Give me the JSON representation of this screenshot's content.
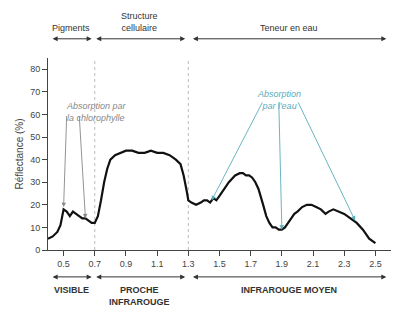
{
  "chart_data": {
    "type": "line",
    "ylabel": "Réflectance (%)",
    "x": [
      0.4,
      0.43,
      0.46,
      0.48,
      0.5,
      0.52,
      0.54,
      0.56,
      0.58,
      0.6,
      0.62,
      0.64,
      0.66,
      0.68,
      0.7,
      0.72,
      0.74,
      0.76,
      0.78,
      0.8,
      0.83,
      0.86,
      0.9,
      0.94,
      0.98,
      1.02,
      1.06,
      1.1,
      1.14,
      1.18,
      1.22,
      1.25,
      1.27,
      1.29,
      1.3,
      1.32,
      1.35,
      1.38,
      1.4,
      1.42,
      1.44,
      1.46,
      1.48,
      1.5,
      1.53,
      1.56,
      1.6,
      1.63,
      1.65,
      1.67,
      1.69,
      1.71,
      1.73,
      1.75,
      1.78,
      1.8,
      1.82,
      1.84,
      1.86,
      1.88,
      1.9,
      1.92,
      1.94,
      1.96,
      1.98,
      2.0,
      2.03,
      2.06,
      2.09,
      2.12,
      2.15,
      2.18,
      2.2,
      2.23,
      2.26,
      2.3,
      2.34,
      2.38,
      2.42,
      2.46,
      2.5
    ],
    "values": [
      5,
      6,
      8,
      11,
      18,
      17,
      15,
      17,
      16,
      15,
      14,
      14,
      13,
      12,
      12,
      15,
      22,
      30,
      36,
      40,
      42,
      43,
      44,
      44,
      43,
      43,
      44,
      43,
      43,
      42,
      40,
      38,
      33,
      26,
      22,
      21,
      20,
      21,
      22,
      22,
      21,
      23,
      22,
      24,
      27,
      30,
      33,
      34,
      34,
      33,
      33,
      32,
      30,
      27,
      20,
      15,
      12,
      10,
      10,
      9,
      9,
      10,
      12,
      14,
      16,
      17,
      19,
      20,
      20,
      19,
      18,
      16,
      17,
      18,
      17,
      16,
      14,
      12,
      9,
      5,
      3
    ],
    "color": "#111111",
    "xlim": [
      0.4,
      2.6
    ],
    "ylim": [
      0,
      85
    ],
    "xticks": [
      0.5,
      0.7,
      0.9,
      1.1,
      1.3,
      1.5,
      1.7,
      1.9,
      2.1,
      2.3,
      2.5
    ],
    "yticks": [
      0,
      10,
      20,
      30,
      40,
      50,
      60,
      70,
      80
    ],
    "grid": false,
    "vlines": {
      "x": [
        0.7,
        1.3
      ],
      "color": "#bbbbbb",
      "line_style": "dotted"
    },
    "annotations": [
      {
        "text": "Absorption par\nla chlorophylle",
        "x": 0.5,
        "y": 67,
        "color": "#888888",
        "arrows": [
          {
            "x_from": 0.52,
            "y_from": 60,
            "x_to": 0.5,
            "y_to": 19
          },
          {
            "x_from": 0.6,
            "y_from": 60,
            "x_to": 0.64,
            "y_to": 14
          }
        ]
      },
      {
        "text": "Absorption\npar l'eau",
        "x": 1.88,
        "y": 72,
        "color": "#5aabbb",
        "arrows": [
          {
            "x_from": 1.78,
            "y_from": 66,
            "x_to": 1.45,
            "y_to": 22
          },
          {
            "x_from": 1.88,
            "y_from": 66,
            "x_to": 1.9,
            "y_to": 9
          },
          {
            "x_from": 2.0,
            "y_from": 66,
            "x_to": 2.37,
            "y_to": 13
          }
        ]
      }
    ],
    "top_brackets": [
      {
        "label": "Pigments",
        "x1": 0.42,
        "x2": 0.68
      },
      {
        "label": "Structure\ncellulaire",
        "x1": 0.7,
        "x2": 1.28
      },
      {
        "label": "Teneur en eau",
        "x1": 1.32,
        "x2": 2.57
      }
    ],
    "bottom_brackets": [
      {
        "label": "VISIBLE",
        "x1": 0.42,
        "x2": 0.68
      },
      {
        "label": "PROCHE\nINFRAROUGE",
        "x1": 0.7,
        "x2": 1.28
      },
      {
        "label": "INFRAROUGE MOYEN",
        "x1": 1.32,
        "x2": 2.57
      }
    ]
  }
}
